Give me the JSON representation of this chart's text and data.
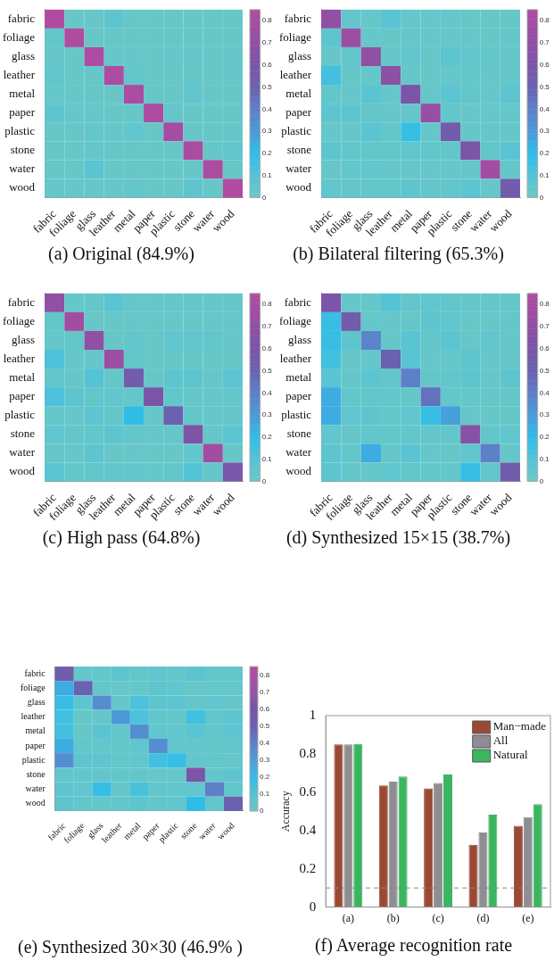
{
  "chart_data": [
    {
      "type": "heatmap",
      "title": "(a) Original (84.9%)",
      "categories": [
        "fabric",
        "foliage",
        "glass",
        "leather",
        "metal",
        "paper",
        "plastic",
        "stone",
        "water",
        "wood"
      ],
      "y_categories": [
        "fabric",
        "foliage",
        "glass",
        "leather",
        "metal",
        "paper",
        "plastic",
        "stone",
        "water",
        "wood"
      ],
      "cells": [
        [
          0.85,
          0.02,
          0.02,
          0.06,
          0.02,
          0.02,
          0.02,
          0.02,
          0.02,
          0.02
        ],
        [
          0.04,
          0.85,
          0.02,
          0.02,
          0.02,
          0.02,
          0.02,
          0.02,
          0.02,
          0.02
        ],
        [
          0.02,
          0.02,
          0.83,
          0.02,
          0.03,
          0.02,
          0.03,
          0.03,
          0.02,
          0.02
        ],
        [
          0.05,
          0.02,
          0.02,
          0.83,
          0.04,
          0.02,
          0.02,
          0.02,
          0.02,
          0.02
        ],
        [
          0.03,
          0.02,
          0.02,
          0.02,
          0.82,
          0.02,
          0.02,
          0.05,
          0.02,
          0.02
        ],
        [
          0.06,
          0.03,
          0.03,
          0.02,
          0.02,
          0.83,
          0.04,
          0.02,
          0.02,
          0.02
        ],
        [
          0.02,
          0.02,
          0.04,
          0.02,
          0.05,
          0.02,
          0.8,
          0.02,
          0.02,
          0.02
        ],
        [
          0.02,
          0.02,
          0.03,
          0.02,
          0.02,
          0.02,
          0.02,
          0.82,
          0.02,
          0.05
        ],
        [
          0.02,
          0.02,
          0.08,
          0.02,
          0.02,
          0.02,
          0.02,
          0.02,
          0.82,
          0.02
        ],
        [
          0.03,
          0.03,
          0.02,
          0.02,
          0.04,
          0.02,
          0.02,
          0.06,
          0.02,
          0.85
        ]
      ],
      "clim": [
        0,
        0.85
      ],
      "cticks": [
        0,
        0.1,
        0.2,
        0.3,
        0.4,
        0.5,
        0.6,
        0.7,
        0.8
      ]
    },
    {
      "type": "heatmap",
      "title": "(b) Bilateral filtering (65.3%)",
      "categories": [
        "fabric",
        "foliage",
        "glass",
        "leather",
        "metal",
        "paper",
        "plastic",
        "stone",
        "water",
        "wood"
      ],
      "y_categories": [
        "fabric",
        "foliage",
        "glass",
        "leather",
        "metal",
        "paper",
        "plastic",
        "stone",
        "water",
        "wood"
      ],
      "cells": [
        [
          0.7,
          0.04,
          0.03,
          0.08,
          0.03,
          0.03,
          0.03,
          0.02,
          0.02,
          0.02
        ],
        [
          0.06,
          0.75,
          0.02,
          0.02,
          0.03,
          0.03,
          0.03,
          0.02,
          0.02,
          0.03
        ],
        [
          0.02,
          0.04,
          0.7,
          0.02,
          0.05,
          0.02,
          0.06,
          0.04,
          0.04,
          0.03
        ],
        [
          0.15,
          0.03,
          0.03,
          0.68,
          0.03,
          0.02,
          0.03,
          0.03,
          0.03,
          0.03
        ],
        [
          0.04,
          0.03,
          0.08,
          0.03,
          0.6,
          0.03,
          0.07,
          0.04,
          0.03,
          0.06
        ],
        [
          0.06,
          0.06,
          0.04,
          0.03,
          0.03,
          0.73,
          0.04,
          0.02,
          0.03,
          0.03
        ],
        [
          0.03,
          0.03,
          0.08,
          0.04,
          0.18,
          0.03,
          0.55,
          0.03,
          0.03,
          0.03
        ],
        [
          0.06,
          0.04,
          0.04,
          0.04,
          0.05,
          0.04,
          0.04,
          0.6,
          0.04,
          0.08
        ],
        [
          0.02,
          0.04,
          0.05,
          0.03,
          0.03,
          0.03,
          0.03,
          0.03,
          0.78,
          0.03
        ],
        [
          0.05,
          0.04,
          0.04,
          0.04,
          0.06,
          0.04,
          0.04,
          0.07,
          0.03,
          0.55
        ]
      ],
      "clim": [
        0,
        0.85
      ],
      "cticks": [
        0,
        0.1,
        0.2,
        0.3,
        0.4,
        0.5,
        0.6,
        0.7,
        0.8
      ]
    },
    {
      "type": "heatmap",
      "title": "(c) High pass (64.8%)",
      "categories": [
        "fabric",
        "foliage",
        "glass",
        "leather",
        "metal",
        "paper",
        "plastic",
        "stone",
        "water",
        "wood"
      ],
      "y_categories": [
        "fabric",
        "foliage",
        "glass",
        "leather",
        "metal",
        "paper",
        "plastic",
        "stone",
        "water",
        "wood"
      ],
      "cells": [
        [
          0.7,
          0.03,
          0.03,
          0.08,
          0.03,
          0.03,
          0.03,
          0.03,
          0.03,
          0.03
        ],
        [
          0.04,
          0.78,
          0.02,
          0.02,
          0.02,
          0.02,
          0.02,
          0.02,
          0.02,
          0.03
        ],
        [
          0.03,
          0.04,
          0.7,
          0.02,
          0.04,
          0.02,
          0.05,
          0.05,
          0.04,
          0.03
        ],
        [
          0.12,
          0.03,
          0.03,
          0.75,
          0.04,
          0.02,
          0.02,
          0.02,
          0.02,
          0.02
        ],
        [
          0.04,
          0.03,
          0.1,
          0.03,
          0.55,
          0.02,
          0.06,
          0.06,
          0.03,
          0.07
        ],
        [
          0.12,
          0.06,
          0.04,
          0.04,
          0.03,
          0.6,
          0.04,
          0.03,
          0.03,
          0.03
        ],
        [
          0.03,
          0.03,
          0.07,
          0.04,
          0.2,
          0.03,
          0.5,
          0.03,
          0.03,
          0.03
        ],
        [
          0.05,
          0.04,
          0.04,
          0.06,
          0.04,
          0.03,
          0.03,
          0.62,
          0.03,
          0.07
        ],
        [
          0.03,
          0.03,
          0.06,
          0.02,
          0.02,
          0.02,
          0.02,
          0.04,
          0.78,
          0.02
        ],
        [
          0.07,
          0.04,
          0.04,
          0.05,
          0.04,
          0.03,
          0.04,
          0.1,
          0.03,
          0.58
        ]
      ],
      "clim": [
        0,
        0.85
      ],
      "cticks": [
        0,
        0.1,
        0.2,
        0.3,
        0.4,
        0.5,
        0.6,
        0.7,
        0.8
      ]
    },
    {
      "type": "heatmap",
      "title": "(d) Synthesized 15×15 (38.7%)",
      "categories": [
        "fabric",
        "foliage",
        "glass",
        "leather",
        "metal",
        "paper",
        "plastic",
        "stone",
        "water",
        "wood"
      ],
      "y_categories": [
        "fabric",
        "foliage",
        "glass",
        "leather",
        "metal",
        "paper",
        "plastic",
        "stone",
        "water",
        "wood"
      ],
      "cells": [
        [
          0.6,
          0.03,
          0.03,
          0.1,
          0.04,
          0.05,
          0.04,
          0.03,
          0.03,
          0.03
        ],
        [
          0.18,
          0.55,
          0.03,
          0.03,
          0.02,
          0.06,
          0.05,
          0.02,
          0.02,
          0.03
        ],
        [
          0.18,
          0.06,
          0.38,
          0.03,
          0.08,
          0.04,
          0.07,
          0.02,
          0.05,
          0.03
        ],
        [
          0.15,
          0.02,
          0.03,
          0.5,
          0.08,
          0.03,
          0.03,
          0.06,
          0.03,
          0.03
        ],
        [
          0.08,
          0.03,
          0.07,
          0.04,
          0.4,
          0.04,
          0.04,
          0.06,
          0.03,
          0.06
        ],
        [
          0.25,
          0.04,
          0.04,
          0.04,
          0.03,
          0.45,
          0.04,
          0.03,
          0.03,
          0.03
        ],
        [
          0.25,
          0.05,
          0.06,
          0.03,
          0.05,
          0.18,
          0.28,
          0.02,
          0.02,
          0.02
        ],
        [
          0.05,
          0.03,
          0.04,
          0.04,
          0.04,
          0.04,
          0.04,
          0.65,
          0.04,
          0.05
        ],
        [
          0.06,
          0.04,
          0.25,
          0.03,
          0.08,
          0.03,
          0.03,
          0.05,
          0.4,
          0.03
        ],
        [
          0.06,
          0.03,
          0.03,
          0.05,
          0.04,
          0.04,
          0.03,
          0.18,
          0.04,
          0.55
        ]
      ],
      "clim": [
        0,
        0.85
      ],
      "cticks": [
        0,
        0.1,
        0.2,
        0.3,
        0.4,
        0.5,
        0.6,
        0.7,
        0.8
      ]
    },
    {
      "type": "heatmap",
      "title": "(e) Synthesized 30×30 (46.9% )",
      "categories": [
        "fabric",
        "foliage",
        "glass",
        "leather",
        "metal",
        "paper",
        "plastic",
        "stone",
        "water",
        "wood"
      ],
      "y_categories": [
        "fabric",
        "foliage",
        "glass",
        "leather",
        "metal",
        "paper",
        "plastic",
        "stone",
        "water",
        "wood"
      ],
      "cells": [
        [
          0.55,
          0.04,
          0.04,
          0.06,
          0.04,
          0.05,
          0.04,
          0.08,
          0.04,
          0.04
        ],
        [
          0.25,
          0.5,
          0.04,
          0.03,
          0.03,
          0.06,
          0.05,
          0.03,
          0.03,
          0.03
        ],
        [
          0.18,
          0.06,
          0.35,
          0.03,
          0.12,
          0.06,
          0.07,
          0.04,
          0.05,
          0.02
        ],
        [
          0.15,
          0.03,
          0.03,
          0.3,
          0.12,
          0.04,
          0.04,
          0.15,
          0.05,
          0.06
        ],
        [
          0.15,
          0.03,
          0.08,
          0.04,
          0.35,
          0.05,
          0.05,
          0.08,
          0.04,
          0.07
        ],
        [
          0.25,
          0.04,
          0.04,
          0.04,
          0.05,
          0.35,
          0.05,
          0.04,
          0.04,
          0.04
        ],
        [
          0.35,
          0.06,
          0.06,
          0.04,
          0.05,
          0.15,
          0.18,
          0.04,
          0.04,
          0.03
        ],
        [
          0.05,
          0.04,
          0.04,
          0.04,
          0.04,
          0.03,
          0.03,
          0.6,
          0.04,
          0.06
        ],
        [
          0.06,
          0.05,
          0.18,
          0.03,
          0.13,
          0.04,
          0.05,
          0.05,
          0.4,
          0.04
        ],
        [
          0.06,
          0.04,
          0.04,
          0.04,
          0.06,
          0.04,
          0.05,
          0.2,
          0.04,
          0.5
        ]
      ],
      "clim": [
        0,
        0.85
      ],
      "cticks": [
        0,
        0.1,
        0.2,
        0.3,
        0.4,
        0.5,
        0.6,
        0.7,
        0.8
      ]
    },
    {
      "type": "bar",
      "title": "(f) Average recognition rate",
      "ylabel": "Accuracy",
      "categories": [
        "(a)",
        "(b)",
        "(c)",
        "(d)",
        "(e)"
      ],
      "series": [
        {
          "name": "Man−made",
          "color": "#9a4a34",
          "values": [
            0.85,
            0.635,
            0.62,
            0.325,
            0.425
          ]
        },
        {
          "name": "All",
          "color": "#8e8e92",
          "values": [
            0.85,
            0.655,
            0.648,
            0.39,
            0.47
          ]
        },
        {
          "name": "Natural",
          "color": "#3bb560",
          "values": [
            0.852,
            0.682,
            0.693,
            0.483,
            0.537
          ]
        }
      ],
      "ylim": [
        0,
        1
      ],
      "yticks": [
        0,
        0.2,
        0.4,
        0.6,
        0.8,
        1
      ],
      "legend": "top right",
      "ref_lines": [
        {
          "axis": "y",
          "value": 0.1,
          "color": "#888888",
          "line_style": "dashed"
        }
      ]
    }
  ]
}
